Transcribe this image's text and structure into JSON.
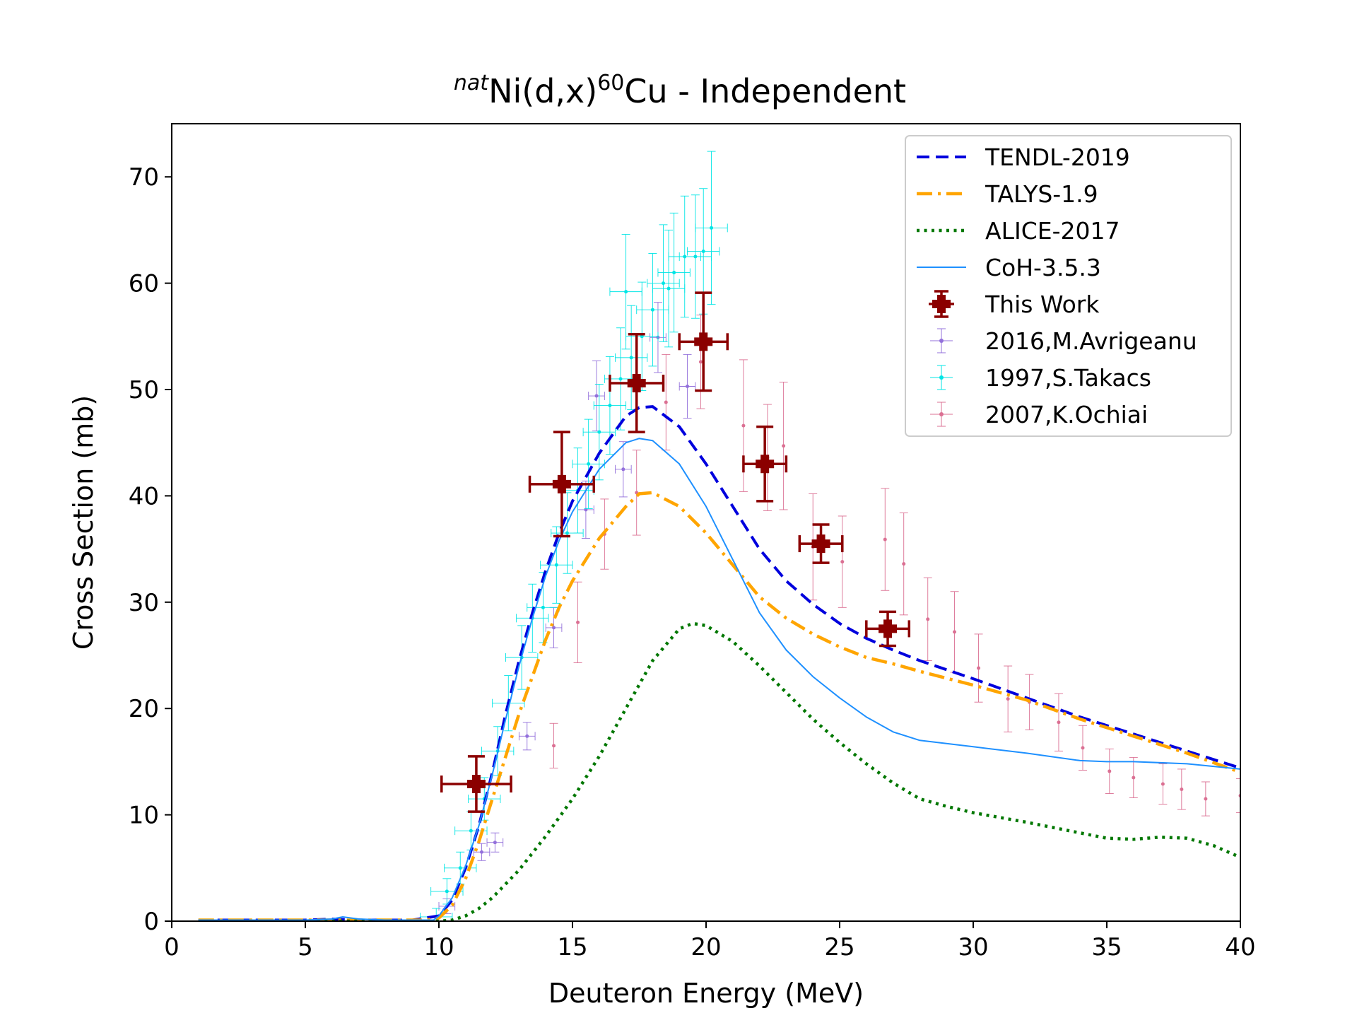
{
  "chart_data": {
    "type": "line",
    "title": {
      "sup_left": "nat",
      "base": "Ni(d,x)",
      "sup_mid": "60",
      "rest": "Cu - Independent"
    },
    "xlabel": "Deuteron Energy (MeV)",
    "ylabel": "Cross Section (mb)",
    "xlim": [
      0,
      40
    ],
    "ylim": [
      0,
      75
    ],
    "xticks": [
      0,
      5,
      10,
      15,
      20,
      25,
      30,
      35,
      40
    ],
    "yticks": [
      0,
      10,
      20,
      30,
      40,
      50,
      60,
      70
    ],
    "grid": false,
    "legend_position": "top-right",
    "series": [
      {
        "name": "TENDL-2019",
        "style": "dashed",
        "color": "#0000dd",
        "points": [
          [
            1,
            0.1
          ],
          [
            5,
            0.1
          ],
          [
            6,
            0.2
          ],
          [
            7,
            0.1
          ],
          [
            9,
            0.1
          ],
          [
            10,
            0.5
          ],
          [
            10.5,
            2
          ],
          [
            11,
            5
          ],
          [
            11.5,
            9
          ],
          [
            12,
            14
          ],
          [
            12.5,
            19.5
          ],
          [
            13,
            24.5
          ],
          [
            13.5,
            29
          ],
          [
            14,
            33
          ],
          [
            14.5,
            36.5
          ],
          [
            15,
            39.5
          ],
          [
            16,
            44
          ],
          [
            17,
            47.5
          ],
          [
            17.5,
            48.3
          ],
          [
            18,
            48.4
          ],
          [
            19,
            46.5
          ],
          [
            20,
            43
          ],
          [
            21,
            39
          ],
          [
            22,
            35
          ],
          [
            23,
            32
          ],
          [
            24,
            29.8
          ],
          [
            25,
            28
          ],
          [
            26,
            26.6
          ],
          [
            27,
            25.5
          ],
          [
            28,
            24.5
          ],
          [
            30,
            22.8
          ],
          [
            32,
            21
          ],
          [
            34,
            19.2
          ],
          [
            36,
            17.6
          ],
          [
            38,
            16
          ],
          [
            40,
            14.4
          ]
        ]
      },
      {
        "name": "TALYS-1.9",
        "style": "dashdot",
        "color": "#ffa500",
        "points": [
          [
            1,
            0.1
          ],
          [
            5,
            0.1
          ],
          [
            8,
            0.1
          ],
          [
            9.5,
            0.1
          ],
          [
            10,
            0.3
          ],
          [
            10.5,
            1.5
          ],
          [
            11,
            4
          ],
          [
            11.5,
            7.5
          ],
          [
            12,
            11.5
          ],
          [
            12.5,
            15.5
          ],
          [
            13,
            19.5
          ],
          [
            13.5,
            23
          ],
          [
            14,
            26.5
          ],
          [
            14.5,
            29.5
          ],
          [
            15,
            32
          ],
          [
            16,
            36
          ],
          [
            17,
            39
          ],
          [
            17.5,
            40.2
          ],
          [
            18,
            40.3
          ],
          [
            19,
            39
          ],
          [
            20,
            36.5
          ],
          [
            21,
            33.5
          ],
          [
            22,
            30.5
          ],
          [
            23,
            28.5
          ],
          [
            24,
            27
          ],
          [
            25,
            25.8
          ],
          [
            26,
            24.8
          ],
          [
            27,
            24.2
          ],
          [
            28,
            23.5
          ],
          [
            30,
            22.2
          ],
          [
            32,
            20.8
          ],
          [
            34,
            19
          ],
          [
            36,
            17.4
          ],
          [
            38,
            15.8
          ],
          [
            40,
            14
          ]
        ]
      },
      {
        "name": "ALICE-2017",
        "style": "dotted",
        "color": "#007700",
        "points": [
          [
            1,
            0
          ],
          [
            10,
            0
          ],
          [
            10.5,
            0.1
          ],
          [
            11,
            0.5
          ],
          [
            11.5,
            1.2
          ],
          [
            12,
            2.2
          ],
          [
            13,
            4.8
          ],
          [
            14,
            8
          ],
          [
            15,
            11.5
          ],
          [
            16,
            15.5
          ],
          [
            17,
            20
          ],
          [
            18,
            24.5
          ],
          [
            19,
            27.5
          ],
          [
            19.5,
            28
          ],
          [
            20,
            27.8
          ],
          [
            21,
            26.3
          ],
          [
            22,
            24
          ],
          [
            23,
            21.5
          ],
          [
            24,
            19
          ],
          [
            25,
            16.8
          ],
          [
            26,
            14.8
          ],
          [
            27,
            13
          ],
          [
            28,
            11.5
          ],
          [
            29,
            10.8
          ],
          [
            30,
            10.2
          ],
          [
            32,
            9.3
          ],
          [
            34,
            8.3
          ],
          [
            35,
            7.8
          ],
          [
            36,
            7.7
          ],
          [
            37,
            7.9
          ],
          [
            38,
            7.8
          ],
          [
            39,
            7.1
          ],
          [
            40,
            6
          ]
        ]
      },
      {
        "name": "CoH-3.5.3",
        "style": "solid",
        "color": "#1e90ff",
        "points": [
          [
            1,
            0.1
          ],
          [
            5,
            0.1
          ],
          [
            6,
            0.2
          ],
          [
            6.4,
            0.4
          ],
          [
            7,
            0.2
          ],
          [
            8,
            0.1
          ],
          [
            9.8,
            0.1
          ],
          [
            10,
            0.5
          ],
          [
            10.5,
            2.2
          ],
          [
            11,
            5.2
          ],
          [
            11.5,
            9
          ],
          [
            12,
            13.8
          ],
          [
            12.5,
            19
          ],
          [
            13,
            24
          ],
          [
            13.5,
            28.5
          ],
          [
            14,
            32.5
          ],
          [
            14.5,
            35.8
          ],
          [
            15,
            38.5
          ],
          [
            16,
            42.5
          ],
          [
            17,
            45
          ],
          [
            17.5,
            45.4
          ],
          [
            18,
            45.2
          ],
          [
            19,
            43
          ],
          [
            20,
            39
          ],
          [
            21,
            34
          ],
          [
            22,
            29
          ],
          [
            23,
            25.5
          ],
          [
            24,
            23
          ],
          [
            25,
            21
          ],
          [
            26,
            19.2
          ],
          [
            27,
            17.8
          ],
          [
            28,
            17
          ],
          [
            30,
            16.4
          ],
          [
            32,
            15.8
          ],
          [
            34,
            15.1
          ],
          [
            35,
            15
          ],
          [
            36,
            15
          ],
          [
            38,
            14.8
          ],
          [
            40,
            14.3
          ]
        ]
      }
    ],
    "this_work": {
      "name": "This Work",
      "color": "#8b0000",
      "points": [
        [
          11.4,
          12.9,
          1.3,
          2.6
        ],
        [
          14.6,
          41.1,
          1.2,
          4.9
        ],
        [
          17.4,
          50.6,
          1.0,
          4.6
        ],
        [
          19.9,
          54.5,
          0.9,
          4.6
        ],
        [
          22.2,
          43.0,
          0.8,
          3.5
        ],
        [
          24.3,
          35.5,
          0.8,
          1.8
        ],
        [
          26.8,
          27.5,
          0.8,
          1.6
        ]
      ]
    },
    "exp_datasets": [
      {
        "name": "2016,M.Avrigeanu",
        "color": "#9370db",
        "points": [
          [
            10.3,
            1.4,
            0.3,
            0.7
          ],
          [
            11.6,
            6.5,
            0.3,
            0.8
          ],
          [
            12.1,
            7.4,
            0.3,
            0.9
          ],
          [
            13.3,
            17.4,
            0.3,
            1.3
          ],
          [
            14.3,
            27.6,
            0.3,
            1.9
          ],
          [
            15.5,
            38.7,
            0.3,
            2.7
          ],
          [
            15.9,
            49.4,
            0.3,
            3.3
          ],
          [
            16.9,
            42.5,
            0.3,
            2.6
          ],
          [
            18.2,
            54.9,
            0.3,
            3.3
          ],
          [
            19.3,
            50.3,
            0.3,
            3.0
          ]
        ]
      },
      {
        "name": "1997,S.Takacs",
        "color": "#00e5e5",
        "points": [
          [
            9.9,
            0.4,
            0.6,
            0.8
          ],
          [
            10.3,
            2.8,
            0.6,
            1.2
          ],
          [
            10.8,
            5.0,
            0.6,
            1.5
          ],
          [
            11.2,
            8.5,
            0.6,
            1.8
          ],
          [
            11.7,
            11.5,
            0.6,
            2.0
          ],
          [
            12.2,
            16.0,
            0.6,
            2.3
          ],
          [
            12.6,
            20.5,
            0.6,
            2.6
          ],
          [
            13.1,
            24.8,
            0.6,
            3.0
          ],
          [
            13.5,
            28.5,
            0.6,
            3.2
          ],
          [
            13.9,
            29.5,
            0.6,
            3.3
          ],
          [
            14.4,
            33.5,
            0.6,
            3.6
          ],
          [
            14.8,
            36.5,
            0.6,
            3.8
          ],
          [
            15.2,
            40.5,
            0.6,
            4.0
          ],
          [
            15.6,
            43.0,
            0.6,
            4.2
          ],
          [
            16.0,
            46.0,
            0.6,
            4.5
          ],
          [
            16.4,
            48.5,
            0.6,
            4.6
          ],
          [
            16.8,
            51.0,
            0.6,
            4.8
          ],
          [
            17.2,
            53.0,
            0.6,
            4.9
          ],
          [
            17.6,
            55.0,
            0.6,
            5.1
          ],
          [
            18.0,
            57.5,
            0.6,
            5.3
          ],
          [
            18.4,
            60.0,
            0.6,
            5.5
          ],
          [
            18.8,
            61.0,
            0.6,
            5.6
          ],
          [
            19.2,
            62.5,
            0.6,
            5.7
          ],
          [
            19.6,
            62.5,
            0.6,
            5.8
          ],
          [
            19.9,
            63.0,
            0.6,
            5.9
          ],
          [
            20.2,
            65.2,
            0.6,
            7.2
          ],
          [
            18.6,
            59.5,
            0.6,
            5.5
          ],
          [
            17.0,
            59.2,
            0.6,
            5.4
          ]
        ]
      },
      {
        "name": "2007,K.Ochiai",
        "color": "#db7093",
        "points": [
          [
            14.3,
            16.5,
            0,
            2.1
          ],
          [
            15.2,
            28.1,
            0,
            3.8
          ],
          [
            16.2,
            36.4,
            0,
            3.3
          ],
          [
            17.4,
            40.3,
            0,
            4.0
          ],
          [
            18.5,
            48.8,
            0,
            4.5
          ],
          [
            19.8,
            52.6,
            0,
            4.4
          ],
          [
            21.4,
            46.6,
            0,
            6.2
          ],
          [
            22.3,
            43.6,
            0,
            5.0
          ],
          [
            22.9,
            44.7,
            0,
            6.0
          ],
          [
            24.0,
            35.2,
            0,
            5.0
          ],
          [
            25.1,
            33.8,
            0,
            4.3
          ],
          [
            26.7,
            35.9,
            0,
            4.8
          ],
          [
            27.4,
            33.6,
            0,
            4.8
          ],
          [
            28.3,
            28.4,
            0,
            3.9
          ],
          [
            29.3,
            27.2,
            0,
            3.8
          ],
          [
            30.2,
            23.8,
            0,
            3.2
          ],
          [
            31.3,
            20.9,
            0,
            3.1
          ],
          [
            32.1,
            20.6,
            0,
            2.6
          ],
          [
            33.2,
            18.7,
            0,
            2.7
          ],
          [
            34.1,
            16.3,
            0,
            2.1
          ],
          [
            35.1,
            14.1,
            0,
            2.1
          ],
          [
            36.0,
            13.5,
            0,
            1.9
          ],
          [
            37.1,
            12.9,
            0,
            1.9
          ],
          [
            37.8,
            12.4,
            0,
            1.9
          ],
          [
            38.7,
            11.5,
            0,
            1.6
          ],
          [
            40.0,
            11.8,
            0,
            1.6
          ]
        ]
      }
    ]
  }
}
